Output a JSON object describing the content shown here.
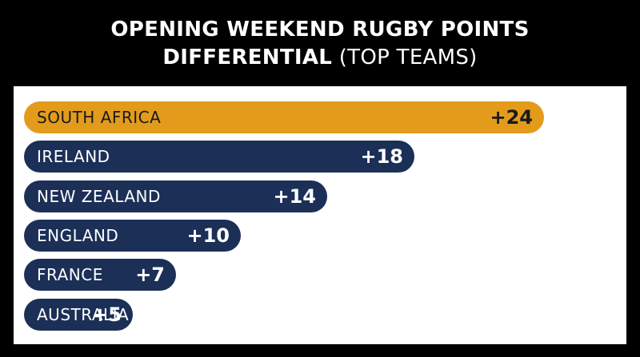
{
  "title": {
    "line1": "OPENING WEEKEND RUGBY POINTS",
    "line2_bold": "DIFFERENTIAL",
    "line2_light": "(TOP TEAMS)"
  },
  "colors": {
    "highlight_bar": "#e39b1c",
    "bar": "#1b2f57",
    "highlight_text": "#1a1a1a",
    "bar_text": "#ffffff"
  },
  "chart_data": {
    "type": "bar",
    "orientation": "horizontal",
    "categories": [
      "SOUTH AFRICA",
      "IRELAND",
      "NEW ZEALAND",
      "ENGLAND",
      "FRANCE",
      "AUSTRALIA"
    ],
    "values": [
      24,
      18,
      14,
      10,
      7,
      5
    ],
    "value_labels": [
      "+24",
      "+18",
      "+14",
      "+10",
      "+7",
      "+5"
    ],
    "highlight_index": 0,
    "grid": false,
    "legend": "none"
  }
}
